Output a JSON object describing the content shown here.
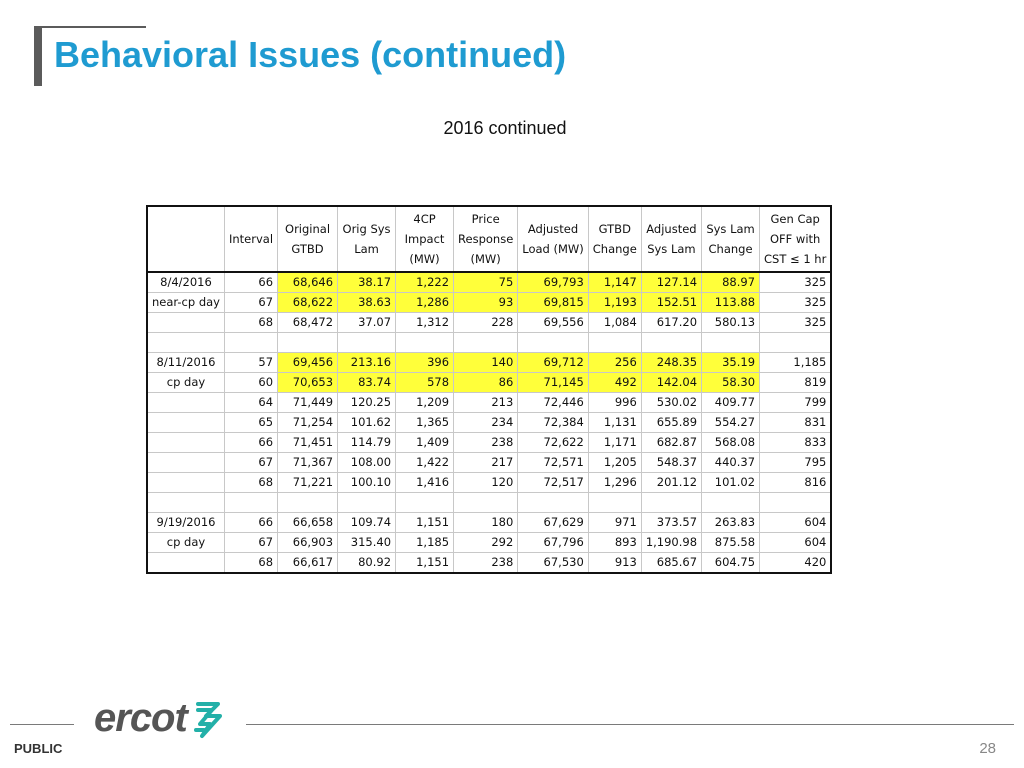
{
  "slide": {
    "title": "Behavioral Issues (continued)",
    "subtitle": "2016 continued",
    "footer_label": "PUBLIC",
    "page_number": "28",
    "logo_text": "ercot",
    "accent_color": "#1f9bd1",
    "highlight_color": "#ffff3a"
  },
  "table": {
    "headers": [
      [
        "",
        ""
      ],
      [
        "Interval",
        ""
      ],
      [
        "Original",
        "GTBD"
      ],
      [
        "Orig Sys",
        "Lam"
      ],
      [
        "4CP",
        "Impact",
        "(MW)"
      ],
      [
        "Price",
        "Response",
        "(MW)"
      ],
      [
        "Adjusted",
        "Load (MW)"
      ],
      [
        "GTBD",
        "Change"
      ],
      [
        "Adjusted",
        "Sys Lam"
      ],
      [
        "Sys Lam",
        "Change"
      ],
      [
        "Gen Cap",
        "OFF with",
        "CST ≤ 1 hr"
      ]
    ],
    "rows": [
      {
        "date": "8/4/2016",
        "interval": "66",
        "original_gtbd": "68,646",
        "orig_sys_lam": "38.17",
        "impact_4cp": "1,222",
        "price_response": "75",
        "adjusted_load": "69,793",
        "gtbd_change": "1,147",
        "adjusted_sys_lam": "127.14",
        "sys_lam_change": "88.97",
        "gen_cap_off": "325",
        "highlight": true
      },
      {
        "date": "near-cp day",
        "interval": "67",
        "original_gtbd": "68,622",
        "orig_sys_lam": "38.63",
        "impact_4cp": "1,286",
        "price_response": "93",
        "adjusted_load": "69,815",
        "gtbd_change": "1,193",
        "adjusted_sys_lam": "152.51",
        "sys_lam_change": "113.88",
        "gen_cap_off": "325",
        "highlight": true
      },
      {
        "date": "",
        "interval": "68",
        "original_gtbd": "68,472",
        "orig_sys_lam": "37.07",
        "impact_4cp": "1,312",
        "price_response": "228",
        "adjusted_load": "69,556",
        "gtbd_change": "1,084",
        "adjusted_sys_lam": "617.20",
        "sys_lam_change": "580.13",
        "gen_cap_off": "325",
        "highlight": false
      },
      {
        "spacer": true
      },
      {
        "date": "8/11/2016",
        "interval": "57",
        "original_gtbd": "69,456",
        "orig_sys_lam": "213.16",
        "impact_4cp": "396",
        "price_response": "140",
        "adjusted_load": "69,712",
        "gtbd_change": "256",
        "adjusted_sys_lam": "248.35",
        "sys_lam_change": "35.19",
        "gen_cap_off": "1,185",
        "highlight": true
      },
      {
        "date": "cp day",
        "interval": "60",
        "original_gtbd": "70,653",
        "orig_sys_lam": "83.74",
        "impact_4cp": "578",
        "price_response": "86",
        "adjusted_load": "71,145",
        "gtbd_change": "492",
        "adjusted_sys_lam": "142.04",
        "sys_lam_change": "58.30",
        "gen_cap_off": "819",
        "highlight": true
      },
      {
        "date": "",
        "interval": "64",
        "original_gtbd": "71,449",
        "orig_sys_lam": "120.25",
        "impact_4cp": "1,209",
        "price_response": "213",
        "adjusted_load": "72,446",
        "gtbd_change": "996",
        "adjusted_sys_lam": "530.02",
        "sys_lam_change": "409.77",
        "gen_cap_off": "799",
        "highlight": false
      },
      {
        "date": "",
        "interval": "65",
        "original_gtbd": "71,254",
        "orig_sys_lam": "101.62",
        "impact_4cp": "1,365",
        "price_response": "234",
        "adjusted_load": "72,384",
        "gtbd_change": "1,131",
        "adjusted_sys_lam": "655.89",
        "sys_lam_change": "554.27",
        "gen_cap_off": "831",
        "highlight": false
      },
      {
        "date": "",
        "interval": "66",
        "original_gtbd": "71,451",
        "orig_sys_lam": "114.79",
        "impact_4cp": "1,409",
        "price_response": "238",
        "adjusted_load": "72,622",
        "gtbd_change": "1,171",
        "adjusted_sys_lam": "682.87",
        "sys_lam_change": "568.08",
        "gen_cap_off": "833",
        "highlight": false
      },
      {
        "date": "",
        "interval": "67",
        "original_gtbd": "71,367",
        "orig_sys_lam": "108.00",
        "impact_4cp": "1,422",
        "price_response": "217",
        "adjusted_load": "72,571",
        "gtbd_change": "1,205",
        "adjusted_sys_lam": "548.37",
        "sys_lam_change": "440.37",
        "gen_cap_off": "795",
        "highlight": false
      },
      {
        "date": "",
        "interval": "68",
        "original_gtbd": "71,221",
        "orig_sys_lam": "100.10",
        "impact_4cp": "1,416",
        "price_response": "120",
        "adjusted_load": "72,517",
        "gtbd_change": "1,296",
        "adjusted_sys_lam": "201.12",
        "sys_lam_change": "101.02",
        "gen_cap_off": "816",
        "highlight": false
      },
      {
        "spacer": true
      },
      {
        "date": "9/19/2016",
        "interval": "66",
        "original_gtbd": "66,658",
        "orig_sys_lam": "109.74",
        "impact_4cp": "1,151",
        "price_response": "180",
        "adjusted_load": "67,629",
        "gtbd_change": "971",
        "adjusted_sys_lam": "373.57",
        "sys_lam_change": "263.83",
        "gen_cap_off": "604",
        "highlight": false
      },
      {
        "date": "cp day",
        "interval": "67",
        "original_gtbd": "66,903",
        "orig_sys_lam": "315.40",
        "impact_4cp": "1,185",
        "price_response": "292",
        "adjusted_load": "67,796",
        "gtbd_change": "893",
        "adjusted_sys_lam": "1,190.98",
        "sys_lam_change": "875.58",
        "gen_cap_off": "604",
        "highlight": false
      },
      {
        "date": "",
        "interval": "68",
        "original_gtbd": "66,617",
        "orig_sys_lam": "80.92",
        "impact_4cp": "1,151",
        "price_response": "238",
        "adjusted_load": "67,530",
        "gtbd_change": "913",
        "adjusted_sys_lam": "685.67",
        "sys_lam_change": "604.75",
        "gen_cap_off": "420",
        "highlight": false
      }
    ]
  }
}
